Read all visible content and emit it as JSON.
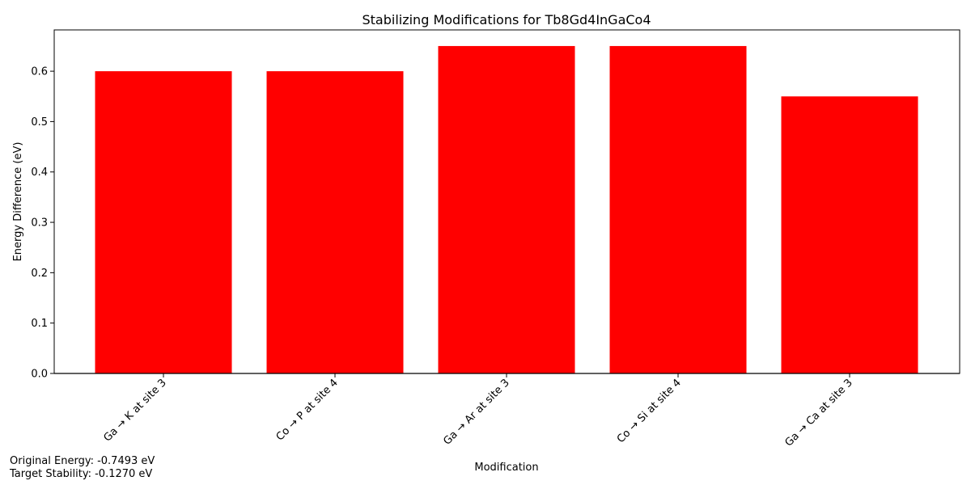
{
  "chart_data": {
    "type": "bar",
    "title": "Stabilizing Modifications for Tb8Gd4InGaCo4",
    "xlabel": "Modification",
    "ylabel": "Energy Difference (eV)",
    "categories": [
      "Ga → K at site 3",
      "Co → P at site 4",
      "Ga → Ar at site 3",
      "Co → Si at site 4",
      "Ga → Ca at site 3"
    ],
    "values": [
      0.6,
      0.6,
      0.65,
      0.65,
      0.55
    ],
    "ylim": [
      0,
      0.682
    ],
    "yticks": [
      "0.0",
      "0.1",
      "0.2",
      "0.3",
      "0.4",
      "0.5",
      "0.6"
    ],
    "bar_color": "#ff0000",
    "grid": false,
    "legend": "none"
  },
  "annotations": {
    "original_energy": "Original Energy: -0.7493 eV",
    "target_stability": "Target Stability: -0.1270 eV"
  }
}
